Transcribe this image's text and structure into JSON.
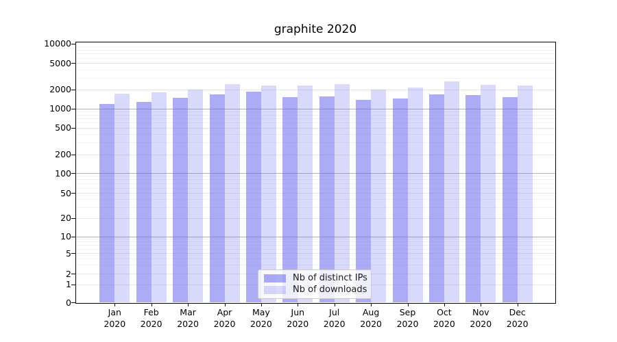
{
  "chart_data": {
    "type": "bar",
    "title": "graphite 2020",
    "categories": [
      "Jan 2020",
      "Feb 2020",
      "Mar 2020",
      "Apr 2020",
      "May 2020",
      "Jun 2020",
      "Jul 2020",
      "Aug 2020",
      "Sep 2020",
      "Oct 2020",
      "Nov 2020",
      "Dec 2020"
    ],
    "series": [
      {
        "name": "Nb of distinct IPs",
        "color": "rgba(102,102,238,0.55)",
        "values": [
          1190,
          1300,
          1480,
          1680,
          1860,
          1540,
          1560,
          1380,
          1450,
          1700,
          1650,
          1540
        ]
      },
      {
        "name": "Nb of downloads",
        "color": "rgba(102,102,238,0.25)",
        "values": [
          1730,
          1840,
          2030,
          2450,
          2340,
          2300,
          2410,
          2010,
          2150,
          2670,
          2380,
          2320
        ]
      }
    ],
    "xlabel": "",
    "ylabel": "",
    "yscale": "symlog",
    "y_ticks": [
      0,
      1,
      2,
      5,
      10,
      20,
      50,
      100,
      200,
      500,
      1000,
      2000,
      5000,
      10000
    ],
    "ylim": [
      0,
      11000
    ],
    "grid": true,
    "legend_position": "lower center",
    "colors": {
      "bar_base": "#6666ee",
      "major_power_gridline": "#b0b0b0",
      "labeled_gridline": "#e6e6e6",
      "minor_gridline": "#f2f2f2",
      "spine": "#000000"
    }
  }
}
